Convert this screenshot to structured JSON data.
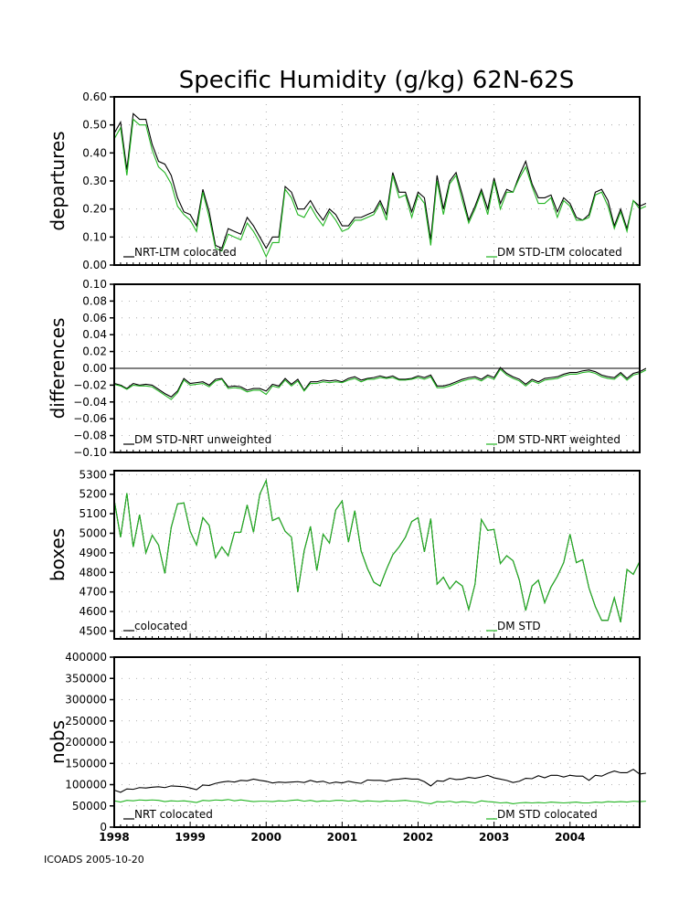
{
  "colors": {
    "black": "#000000",
    "green": "#22b422",
    "grid": "#9a9a9a"
  },
  "title": "Specific Humidity (g/kg) 62N-62S",
  "footer": "ICOADS 2005-10-20",
  "x_axis": {
    "min": 1998.0,
    "max": 2004.917,
    "ticks": [
      "1998",
      "1999",
      "2000",
      "2001",
      "2002",
      "2003",
      "2004"
    ]
  },
  "chart_data": [
    {
      "type": "line",
      "ylabel": "departures",
      "ylim": [
        0.0,
        0.6
      ],
      "yticks": [
        "0.00",
        "0.10",
        "0.20",
        "0.30",
        "0.40",
        "0.50",
        "0.60"
      ],
      "x_start": 1998.0,
      "x_step": 0.08333,
      "series": [
        {
          "name": "NRT-LTM colocated",
          "color": "black",
          "values": [
            0.47,
            0.51,
            0.34,
            0.54,
            0.52,
            0.52,
            0.43,
            0.37,
            0.36,
            0.32,
            0.24,
            0.19,
            0.18,
            0.14,
            0.27,
            0.19,
            0.07,
            0.06,
            0.13,
            0.12,
            0.11,
            0.17,
            0.14,
            0.1,
            0.06,
            0.1,
            0.1,
            0.28,
            0.26,
            0.2,
            0.2,
            0.23,
            0.19,
            0.16,
            0.2,
            0.18,
            0.14,
            0.14,
            0.17,
            0.17,
            0.18,
            0.19,
            0.23,
            0.18,
            0.33,
            0.26,
            0.26,
            0.19,
            0.26,
            0.24,
            0.09,
            0.32,
            0.2,
            0.3,
            0.33,
            0.25,
            0.16,
            0.21,
            0.27,
            0.2,
            0.31,
            0.22,
            0.27,
            0.26,
            0.32,
            0.37,
            0.29,
            0.24,
            0.24,
            0.25,
            0.19,
            0.24,
            0.22,
            0.17,
            0.16,
            0.18,
            0.26,
            0.27,
            0.23,
            0.14,
            0.2,
            0.13,
            0.23,
            0.21,
            0.22
          ]
        },
        {
          "name": "DM STD-LTM colocated",
          "color": "green",
          "values": [
            0.45,
            0.49,
            0.32,
            0.52,
            0.5,
            0.5,
            0.41,
            0.35,
            0.33,
            0.29,
            0.21,
            0.18,
            0.16,
            0.12,
            0.26,
            0.17,
            0.06,
            0.05,
            0.11,
            0.1,
            0.09,
            0.15,
            0.12,
            0.08,
            0.03,
            0.08,
            0.08,
            0.27,
            0.24,
            0.18,
            0.17,
            0.21,
            0.17,
            0.14,
            0.19,
            0.16,
            0.12,
            0.13,
            0.16,
            0.16,
            0.17,
            0.18,
            0.22,
            0.16,
            0.32,
            0.24,
            0.25,
            0.17,
            0.25,
            0.22,
            0.07,
            0.3,
            0.18,
            0.29,
            0.32,
            0.23,
            0.15,
            0.2,
            0.26,
            0.18,
            0.3,
            0.2,
            0.26,
            0.26,
            0.31,
            0.35,
            0.28,
            0.22,
            0.22,
            0.24,
            0.17,
            0.23,
            0.21,
            0.16,
            0.16,
            0.17,
            0.25,
            0.26,
            0.21,
            0.13,
            0.19,
            0.12,
            0.23,
            0.2,
            0.21
          ]
        }
      ]
    },
    {
      "type": "line",
      "ylabel": "differences",
      "ylim": [
        -0.1,
        0.1
      ],
      "yticks": [
        "0.10",
        "0.08",
        "0.06",
        "0.04",
        "0.02",
        "0.00",
        "−0.02",
        "−0.04",
        "−0.06",
        "−0.08",
        "−0.10"
      ],
      "zero_line": true,
      "x_start": 1998.0,
      "x_step": 0.08333,
      "series": [
        {
          "name": "DM STD-NRT unweighted",
          "color": "black",
          "values": [
            -0.018,
            -0.02,
            -0.024,
            -0.018,
            -0.02,
            -0.019,
            -0.02,
            -0.025,
            -0.03,
            -0.034,
            -0.027,
            -0.012,
            -0.018,
            -0.017,
            -0.016,
            -0.02,
            -0.013,
            -0.012,
            -0.022,
            -0.021,
            -0.022,
            -0.026,
            -0.024,
            -0.024,
            -0.027,
            -0.019,
            -0.021,
            -0.012,
            -0.019,
            -0.013,
            -0.026,
            -0.016,
            -0.016,
            -0.014,
            -0.015,
            -0.014,
            -0.016,
            -0.012,
            -0.01,
            -0.014,
            -0.012,
            -0.011,
            -0.009,
            -0.011,
            -0.009,
            -0.013,
            -0.013,
            -0.012,
            -0.009,
            -0.011,
            -0.008,
            -0.021,
            -0.021,
            -0.019,
            -0.016,
            -0.013,
            -0.011,
            -0.01,
            -0.013,
            -0.008,
            -0.011,
            0.001,
            -0.006,
            -0.01,
            -0.013,
            -0.019,
            -0.013,
            -0.016,
            -0.012,
            -0.011,
            -0.01,
            -0.007,
            -0.005,
            -0.005,
            -0.003,
            -0.002,
            -0.004,
            -0.008,
            -0.01,
            -0.011,
            -0.005,
            -0.012,
            -0.006,
            -0.004,
            0.0
          ]
        },
        {
          "name": "DM STD-NRT weighted",
          "color": "green",
          "values": [
            -0.019,
            -0.021,
            -0.025,
            -0.02,
            -0.021,
            -0.021,
            -0.022,
            -0.027,
            -0.032,
            -0.037,
            -0.029,
            -0.014,
            -0.02,
            -0.019,
            -0.018,
            -0.022,
            -0.015,
            -0.013,
            -0.024,
            -0.023,
            -0.024,
            -0.028,
            -0.026,
            -0.026,
            -0.031,
            -0.021,
            -0.023,
            -0.014,
            -0.021,
            -0.015,
            -0.027,
            -0.018,
            -0.018,
            -0.016,
            -0.017,
            -0.016,
            -0.017,
            -0.014,
            -0.012,
            -0.016,
            -0.013,
            -0.013,
            -0.011,
            -0.012,
            -0.011,
            -0.014,
            -0.014,
            -0.013,
            -0.011,
            -0.013,
            -0.01,
            -0.023,
            -0.023,
            -0.021,
            -0.018,
            -0.015,
            -0.013,
            -0.012,
            -0.015,
            -0.01,
            -0.013,
            -0.001,
            -0.008,
            -0.012,
            -0.015,
            -0.021,
            -0.015,
            -0.018,
            -0.014,
            -0.013,
            -0.012,
            -0.009,
            -0.007,
            -0.007,
            -0.005,
            -0.004,
            -0.006,
            -0.01,
            -0.012,
            -0.013,
            -0.007,
            -0.014,
            -0.008,
            -0.006,
            -0.002
          ]
        }
      ]
    },
    {
      "type": "line",
      "ylabel": "boxes",
      "ylim": [
        4460,
        5320
      ],
      "yticks": [
        "5300",
        "5200",
        "5100",
        "5000",
        "4900",
        "4800",
        "4700",
        "4600",
        "4500"
      ],
      "ytick_values": [
        5300,
        5200,
        5100,
        5000,
        4900,
        4800,
        4700,
        4600,
        4500
      ],
      "x_start": 1998.0,
      "x_step": 0.08333,
      "series": [
        {
          "name": "colocated",
          "color": "black",
          "values": [
            5170,
            4980,
            5205,
            4930,
            5095,
            4900,
            4990,
            4940,
            4795,
            5030,
            5150,
            5155,
            5010,
            4940,
            5080,
            5040,
            4875,
            4930,
            4885,
            5005,
            5005,
            5145,
            5005,
            5200,
            5270,
            5065,
            5080,
            5010,
            4980,
            4700,
            4910,
            5035,
            4810,
            4995,
            4950,
            5120,
            5165,
            4955,
            5115,
            4910,
            4820,
            4750,
            4730,
            4815,
            4890,
            4930,
            4980,
            5060,
            5080,
            4905,
            5075,
            4740,
            4775,
            4715,
            4755,
            4730,
            4610,
            4740,
            5070,
            5015,
            5020,
            4845,
            4885,
            4860,
            4760,
            4605,
            4730,
            4760,
            4645,
            4725,
            4780,
            4850,
            4995,
            4850,
            4865,
            4720,
            4625,
            4555,
            4555,
            4670,
            4545,
            4815,
            4790,
            4855
          ]
        },
        {
          "name": "DM STD",
          "color": "green",
          "values": [
            5170,
            4980,
            5205,
            4930,
            5095,
            4900,
            4990,
            4940,
            4795,
            5030,
            5150,
            5155,
            5010,
            4940,
            5080,
            5040,
            4875,
            4930,
            4885,
            5005,
            5005,
            5145,
            5005,
            5200,
            5270,
            5065,
            5080,
            5010,
            4980,
            4700,
            4910,
            5035,
            4810,
            4995,
            4950,
            5120,
            5165,
            4955,
            5115,
            4910,
            4820,
            4750,
            4730,
            4815,
            4890,
            4930,
            4980,
            5060,
            5080,
            4905,
            5075,
            4740,
            4775,
            4715,
            4755,
            4730,
            4610,
            4740,
            5070,
            5015,
            5020,
            4845,
            4885,
            4860,
            4760,
            4605,
            4730,
            4760,
            4645,
            4725,
            4780,
            4850,
            4995,
            4850,
            4865,
            4720,
            4625,
            4555,
            4555,
            4670,
            4545,
            4815,
            4790,
            4855
          ]
        }
      ]
    },
    {
      "type": "line",
      "ylabel": "nobs",
      "ylim": [
        0,
        400000
      ],
      "yticks": [
        "400000",
        "350000",
        "300000",
        "250000",
        "200000",
        "150000",
        "100000",
        "50000",
        "0"
      ],
      "ytick_values": [
        400000,
        350000,
        300000,
        250000,
        200000,
        150000,
        100000,
        50000,
        0
      ],
      "x_start": 1998.0,
      "x_step": 0.08333,
      "series": [
        {
          "name": "NRT colocated",
          "color": "black",
          "values": [
            87000,
            82000,
            90000,
            89000,
            93000,
            92000,
            94000,
            95000,
            93000,
            97000,
            96000,
            95000,
            92000,
            88000,
            99000,
            98000,
            103000,
            106000,
            108000,
            106000,
            110000,
            109000,
            113000,
            110000,
            108000,
            104000,
            106000,
            105000,
            106000,
            107000,
            105000,
            110000,
            106000,
            108000,
            103000,
            106000,
            104000,
            108000,
            105000,
            103000,
            111000,
            110000,
            110000,
            108000,
            112000,
            113000,
            115000,
            113000,
            113000,
            107000,
            97000,
            109000,
            108000,
            115000,
            112000,
            113000,
            117000,
            115000,
            118000,
            122000,
            116000,
            113000,
            110000,
            105000,
            108000,
            115000,
            114000,
            121000,
            116000,
            122000,
            122000,
            118000,
            122000,
            120000,
            120000,
            110000,
            122000,
            120000,
            127000,
            132000,
            128000,
            128000,
            136000,
            125000,
            127000
          ]
        },
        {
          "name": "DM STD colocated",
          "color": "green",
          "values": [
            62000,
            59000,
            63000,
            62000,
            64000,
            63000,
            64000,
            63000,
            60000,
            62000,
            61000,
            62000,
            60000,
            58000,
            63000,
            62000,
            64000,
            63000,
            65000,
            62000,
            64000,
            62000,
            60000,
            61000,
            61000,
            60000,
            62000,
            61000,
            63000,
            64000,
            61000,
            63000,
            60000,
            62000,
            61000,
            63000,
            63000,
            61000,
            63000,
            60000,
            62000,
            61000,
            60000,
            62000,
            61000,
            62000,
            63000,
            61000,
            60000,
            57000,
            55000,
            60000,
            59000,
            61000,
            58000,
            60000,
            59000,
            57000,
            62000,
            60000,
            59000,
            57000,
            58000,
            55000,
            57000,
            58000,
            57000,
            58000,
            57000,
            59000,
            58000,
            57000,
            58000,
            59000,
            57000,
            57000,
            59000,
            58000,
            60000,
            59000,
            60000,
            59000,
            61000,
            60000,
            61000
          ]
        }
      ]
    }
  ]
}
